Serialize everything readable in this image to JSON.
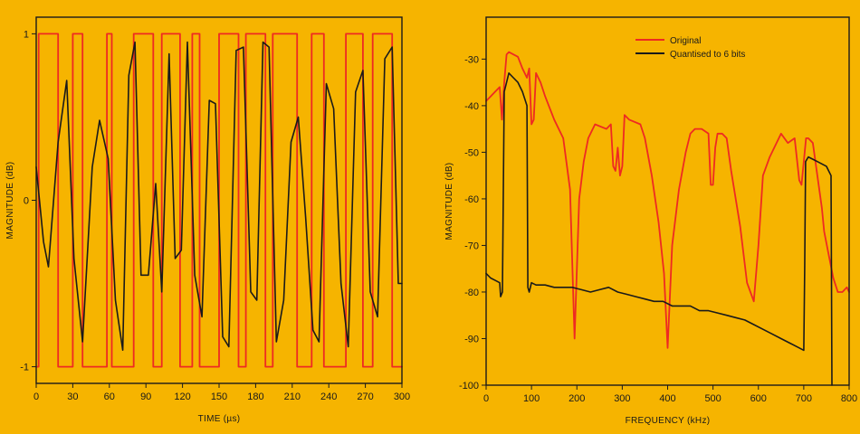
{
  "colors": {
    "background": "#f6b400",
    "axes": "#1a1a1a",
    "original": "#ee2a22",
    "quantised": "#1a1a1a"
  },
  "chart_data": [
    {
      "type": "line",
      "xlabel": "TIME (µs)",
      "ylabel": "MAGNITUDE (dB)",
      "xlim": [
        0,
        300
      ],
      "ylim": [
        -1.1,
        1.1
      ],
      "x_ticks": [
        "0",
        "30",
        "60",
        "90",
        "120",
        "150",
        "180",
        "210",
        "240",
        "270",
        "300"
      ],
      "y_ticks": [
        "1",
        "0",
        "-1"
      ],
      "y_tick_values": [
        1,
        0,
        -1
      ],
      "grid": false,
      "legend": "none",
      "series": [
        {
          "color": "#ee2a22",
          "style": "square-wave",
          "x": [
            0,
            2,
            2,
            18,
            18,
            30,
            30,
            38,
            38,
            58,
            58,
            62,
            62,
            80,
            80,
            96,
            96,
            103,
            103,
            118,
            118,
            128,
            128,
            134,
            134,
            150,
            150,
            166,
            166,
            172,
            172,
            188,
            188,
            194,
            194,
            214,
            214,
            226,
            226,
            236,
            236,
            254,
            254,
            268,
            268,
            276,
            276,
            292,
            292,
            300
          ],
          "y": [
            -1,
            -1,
            1,
            1,
            -1,
            -1,
            1,
            1,
            -1,
            -1,
            1,
            1,
            -1,
            -1,
            1,
            1,
            -1,
            -1,
            1,
            1,
            -1,
            -1,
            1,
            1,
            -1,
            -1,
            1,
            1,
            -1,
            -1,
            1,
            1,
            -1,
            -1,
            1,
            1,
            -1,
            -1,
            1,
            1,
            -1,
            -1,
            1,
            1,
            -1,
            -1,
            1,
            1,
            -1,
            -1
          ]
        },
        {
          "color": "#1a1a1a",
          "style": "smooth",
          "x": [
            0,
            6,
            10,
            18,
            25,
            31,
            38,
            46,
            52,
            59,
            65,
            71,
            76,
            81,
            86,
            92,
            98,
            103,
            109,
            114,
            119,
            124,
            130,
            136,
            142,
            147,
            153,
            158,
            164,
            170,
            176,
            181,
            186,
            191,
            197,
            203,
            209,
            215,
            221,
            227,
            232,
            238,
            244,
            250,
            256,
            262,
            268,
            274,
            280,
            286,
            292,
            297,
            300
          ],
          "y": [
            0.2,
            -0.25,
            -0.4,
            0.35,
            0.72,
            -0.35,
            -0.85,
            0.2,
            0.48,
            0.25,
            -0.6,
            -0.9,
            0.75,
            0.95,
            -0.45,
            -0.45,
            0.1,
            -0.55,
            0.88,
            -0.35,
            -0.3,
            0.95,
            -0.45,
            -0.7,
            0.6,
            0.58,
            -0.82,
            -0.88,
            0.9,
            0.92,
            -0.55,
            -0.6,
            0.95,
            0.92,
            -0.85,
            -0.6,
            0.35,
            0.5,
            -0.1,
            -0.78,
            -0.85,
            0.7,
            0.55,
            -0.5,
            -0.88,
            0.65,
            0.78,
            -0.55,
            -0.7,
            0.85,
            0.92,
            -0.5,
            -0.5
          ]
        }
      ]
    },
    {
      "type": "line",
      "xlabel": "FREQUENCY (kHz)",
      "ylabel": "MAGNITUDE (dB)",
      "xlim": [
        0,
        800
      ],
      "ylim": [
        -100,
        -21
      ],
      "x_ticks": [
        "0",
        "100",
        "200",
        "300",
        "400",
        "500",
        "600",
        "700",
        "800"
      ],
      "y_ticks": [
        "-30",
        "-40",
        "-50",
        "-60",
        "-70",
        "-80",
        "-90",
        "-100"
      ],
      "y_tick_values": [
        -30,
        -40,
        -50,
        -60,
        -70,
        -80,
        -90,
        -100
      ],
      "grid": false,
      "legend": "top-right",
      "series": [
        {
          "name": "Original",
          "color": "#ee2a22",
          "x": [
            0,
            10,
            20,
            30,
            35,
            40,
            45,
            50,
            60,
            70,
            80,
            90,
            95,
            100,
            105,
            110,
            120,
            130,
            150,
            170,
            185,
            195,
            205,
            215,
            225,
            240,
            265,
            275,
            280,
            285,
            290,
            295,
            300,
            305,
            315,
            340,
            350,
            365,
            380,
            392,
            400,
            410,
            425,
            440,
            450,
            460,
            475,
            490,
            495,
            500,
            505,
            510,
            515,
            520,
            530,
            540,
            560,
            575,
            590,
            600,
            610,
            625,
            640,
            650,
            665,
            680,
            690,
            695,
            700,
            705,
            710,
            720,
            730,
            740,
            745,
            755,
            765,
            775,
            785,
            795,
            800
          ],
          "y": [
            -39,
            -38,
            -37,
            -36,
            -43,
            -35,
            -29,
            -28.5,
            -29,
            -29.5,
            -32,
            -34,
            -32,
            -44,
            -43,
            -33,
            -35,
            -38,
            -43,
            -47,
            -58,
            -90,
            -60,
            -52,
            -47,
            -44,
            -45,
            -44,
            -53,
            -54,
            -49,
            -55,
            -53,
            -42,
            -43,
            -44,
            -47,
            -55,
            -65,
            -76,
            -92,
            -70,
            -58,
            -50,
            -46,
            -45,
            -45,
            -46,
            -57,
            -57,
            -49,
            -46,
            -46,
            -46,
            -47,
            -54,
            -66,
            -78,
            -82,
            -70,
            -55,
            -51,
            -48,
            -46,
            -48,
            -47,
            -56,
            -57,
            -52,
            -47,
            -47,
            -48,
            -55,
            -62,
            -67,
            -72,
            -77,
            -80,
            -80,
            -79,
            -80
          ],
          "width": 1.8
        },
        {
          "name": "Quantised to 6 bits",
          "color": "#1a1a1a",
          "x": [
            0,
            10,
            20,
            30,
            32,
            36,
            40,
            45,
            50,
            60,
            70,
            80,
            90,
            92,
            95,
            100,
            110,
            130,
            150,
            170,
            190,
            210,
            230,
            250,
            270,
            290,
            310,
            330,
            350,
            370,
            390,
            410,
            430,
            450,
            470,
            490,
            510,
            530,
            550,
            570,
            590,
            610,
            630,
            650,
            670,
            690,
            700,
            702,
            704,
            710,
            720,
            730,
            740,
            750,
            755,
            760,
            762
          ],
          "y": [
            -76,
            -77,
            -77.5,
            -78,
            -81,
            -80,
            -37,
            -35,
            -33,
            -34,
            -35,
            -37,
            -40,
            -79,
            -80,
            -78,
            -78.5,
            -78.5,
            -79,
            -79,
            -79,
            -79.5,
            -80,
            -79.5,
            -79,
            -80,
            -80.5,
            -81,
            -81.5,
            -82,
            -82,
            -83,
            -83,
            -83,
            -84,
            -84,
            -84.5,
            -85,
            -85.5,
            -86,
            -87,
            -88,
            -89,
            -90,
            -91,
            -92,
            -92.5,
            -75,
            -52,
            -51,
            -51.5,
            -52,
            -52.5,
            -53,
            -54,
            -55,
            -100
          ],
          "width": 1.6
        }
      ]
    }
  ]
}
